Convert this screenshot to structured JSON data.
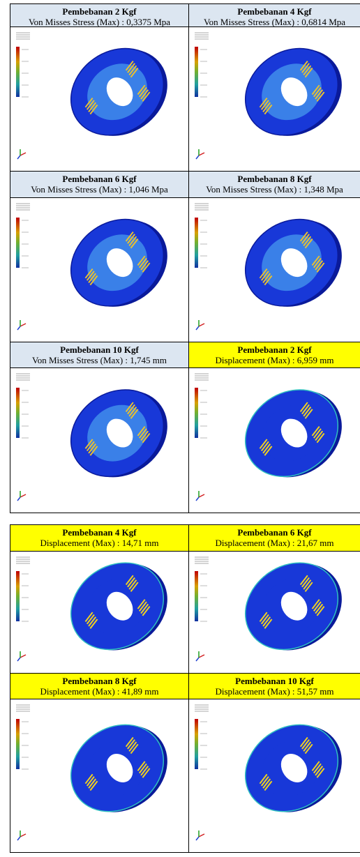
{
  "tables": [
    {
      "rows": [
        [
          {
            "title": "Pembebanan 2 Kgf",
            "subtitle": "Von Misses Stress (Max) : 0,3375 Mpa"
          },
          {
            "title": "Pembebanan 4 Kgf",
            "subtitle": "Von Misses Stress (Max) : 0,6814 Mpa"
          }
        ],
        [
          {
            "title": "Pembebanan 6 Kgf",
            "subtitle": "Von Misses Stress (Max) : 1,046 Mpa"
          },
          {
            "title": "Pembebanan 8 Kgf",
            "subtitle": "Von Misses Stress (Max) : 1,348 Mpa"
          }
        ],
        [
          {
            "title": "Pembebanan 10 Kgf",
            "subtitle": "Von Misses Stress (Max) : 1,745 mm"
          },
          {
            "title": "Pembebanan 2 Kgf",
            "subtitle": "Displacement (Max) : 6,959 mm"
          }
        ]
      ]
    },
    {
      "rows": [
        [
          {
            "title": "Pembebanan 4 Kgf",
            "subtitle": "Displacement (Max) : 14,71 mm"
          },
          {
            "title": "Pembebanan 6 Kgf",
            "subtitle": "Displacement (Max) : 21,67 mm"
          }
        ],
        [
          {
            "title": "Pembebanan 8 Kgf",
            "subtitle": "Displacement (Max) : 41,89 mm"
          },
          {
            "title": "Pembebanan 10 Kgf",
            "subtitle": "Displacement (Max) : 51,57 mm"
          }
        ]
      ]
    }
  ]
}
